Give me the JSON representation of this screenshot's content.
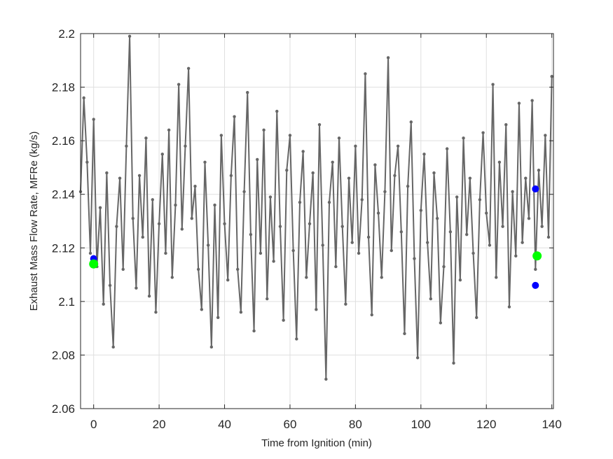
{
  "chart_data": {
    "type": "line",
    "title": "",
    "xlabel": "Time from Ignition (min)",
    "ylabel": "Exhaust Mass Flow Rate, MFRe (kg/s)",
    "xlim": [
      -4,
      140.5
    ],
    "ylim": [
      2.06,
      2.2
    ],
    "xticks": [
      0,
      20,
      40,
      60,
      80,
      100,
      120,
      140
    ],
    "yticks": [
      2.06,
      2.08,
      2.1,
      2.12,
      2.14,
      2.16,
      2.18,
      2.2
    ],
    "xtick_labels": [
      "0",
      "20",
      "40",
      "60",
      "80",
      "100",
      "120",
      "140"
    ],
    "ytick_labels": [
      "2.06",
      "2.08",
      "2.1",
      "2.12",
      "2.14",
      "2.16",
      "2.18",
      "2.2"
    ],
    "grid": true,
    "series_color": "#666666",
    "series": [
      {
        "style": "line-with-dot-markers",
        "x": [
          -4,
          -3,
          -2,
          -1,
          0,
          1,
          2,
          3,
          4,
          5,
          6,
          7,
          8,
          9,
          10,
          11,
          12,
          13,
          14,
          15,
          16,
          17,
          18,
          19,
          20,
          21,
          22,
          23,
          24,
          25,
          26,
          27,
          28,
          29,
          30,
          31,
          32,
          33,
          34,
          35,
          36,
          37,
          38,
          39,
          40,
          41,
          42,
          43,
          44,
          45,
          46,
          47,
          48,
          49,
          50,
          51,
          52,
          53,
          54,
          55,
          56,
          57,
          58,
          59,
          60,
          61,
          62,
          63,
          64,
          65,
          66,
          67,
          68,
          69,
          70,
          71,
          72,
          73,
          74,
          75,
          76,
          77,
          78,
          79,
          80,
          81,
          82,
          83,
          84,
          85,
          86,
          87,
          88,
          89,
          90,
          91,
          92,
          93,
          94,
          95,
          96,
          97,
          98,
          99,
          100,
          101,
          102,
          103,
          104,
          105,
          106,
          107,
          108,
          109,
          110,
          111,
          112,
          113,
          114,
          115,
          116,
          117,
          118,
          119,
          120,
          121,
          122,
          123,
          124,
          125,
          126,
          127,
          128,
          129,
          130,
          131,
          132,
          133,
          134,
          135,
          136,
          137,
          138,
          139,
          140
        ],
        "y": [
          2.141,
          2.176,
          2.152,
          2.118,
          2.168,
          2.113,
          2.135,
          2.099,
          2.148,
          2.106,
          2.083,
          2.128,
          2.146,
          2.112,
          2.158,
          2.199,
          2.131,
          2.105,
          2.147,
          2.124,
          2.161,
          2.102,
          2.138,
          2.096,
          2.129,
          2.155,
          2.118,
          2.164,
          2.109,
          2.136,
          2.181,
          2.127,
          2.158,
          2.187,
          2.131,
          2.143,
          2.112,
          2.097,
          2.152,
          2.121,
          2.083,
          2.136,
          2.094,
          2.162,
          2.129,
          2.108,
          2.147,
          2.169,
          2.112,
          2.096,
          2.141,
          2.178,
          2.125,
          2.089,
          2.153,
          2.118,
          2.164,
          2.101,
          2.139,
          2.115,
          2.171,
          2.128,
          2.093,
          2.149,
          2.162,
          2.119,
          2.086,
          2.137,
          2.156,
          2.109,
          2.129,
          2.148,
          2.097,
          2.166,
          2.121,
          2.071,
          2.137,
          2.152,
          2.113,
          2.161,
          2.128,
          2.099,
          2.146,
          2.122,
          2.158,
          2.118,
          2.138,
          2.185,
          2.124,
          2.095,
          2.151,
          2.133,
          2.109,
          2.141,
          2.191,
          2.119,
          2.147,
          2.158,
          2.126,
          2.088,
          2.143,
          2.167,
          2.116,
          2.079,
          2.134,
          2.155,
          2.122,
          2.101,
          2.148,
          2.131,
          2.092,
          2.113,
          2.157,
          2.126,
          2.077,
          2.139,
          2.108,
          2.161,
          2.125,
          2.146,
          2.118,
          2.094,
          2.138,
          2.163,
          2.133,
          2.121,
          2.181,
          2.109,
          2.152,
          2.128,
          2.166,
          2.098,
          2.141,
          2.117,
          2.174,
          2.122,
          2.146,
          2.131,
          2.175,
          2.112,
          2.149,
          2.128,
          2.162,
          2.124,
          2.184
        ]
      }
    ],
    "markers": [
      {
        "label": "blue",
        "color": "#0000ff",
        "x": 0,
        "y": 2.116
      },
      {
        "label": "green",
        "color": "#00ff00",
        "x": 0,
        "y": 2.114
      },
      {
        "label": "blue",
        "color": "#0000ff",
        "x": 135,
        "y": 2.142
      },
      {
        "label": "blue",
        "color": "#0000ff",
        "x": 135,
        "y": 2.106
      },
      {
        "label": "green",
        "color": "#00ff00",
        "x": 135.5,
        "y": 2.117
      }
    ]
  }
}
